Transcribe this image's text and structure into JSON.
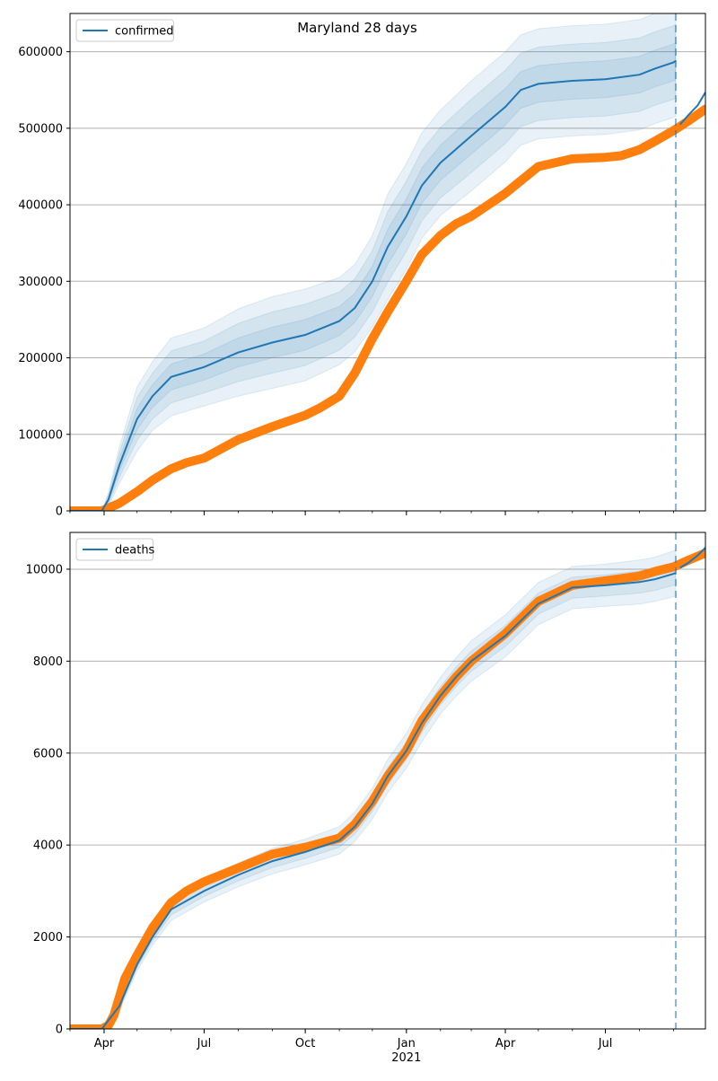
{
  "figure": {
    "title": "Maryland 28 days",
    "colors": {
      "model": "#1f77b4",
      "observed": "#ff7f0e",
      "grid": "#b0b0b0",
      "band": "#1f77b4"
    }
  },
  "chart_data": [
    {
      "type": "line",
      "title": "Maryland 28 days",
      "xlabel": "",
      "ylabel": "",
      "x_axis": "date",
      "xlim": [
        "2020-03-01",
        "2021-09-30"
      ],
      "ylim": [
        0,
        650000
      ],
      "grid": "horizontal",
      "legend": {
        "placement": "top-left",
        "entries": [
          "confirmed"
        ]
      },
      "forecast_start": "2021-09-03",
      "x_ticks": [
        {
          "date": "2020-04-01",
          "label": "Apr"
        },
        {
          "date": "2020-07-01",
          "label": "Jul"
        },
        {
          "date": "2020-10-01",
          "label": "Oct"
        },
        {
          "date": "2021-01-01",
          "label": "Jan"
        },
        {
          "date": "2021-04-01",
          "label": "Apr"
        },
        {
          "date": "2021-07-01",
          "label": "Jul"
        }
      ],
      "y_ticks": [
        0,
        100000,
        200000,
        300000,
        400000,
        500000,
        600000
      ],
      "series": [
        {
          "name": "confirmed",
          "kind": "model-median",
          "x": [
            "2020-03-01",
            "2020-03-30",
            "2020-04-05",
            "2020-04-15",
            "2020-05-01",
            "2020-05-15",
            "2020-06-01",
            "2020-07-01",
            "2020-08-01",
            "2020-09-01",
            "2020-10-01",
            "2020-11-01",
            "2020-11-15",
            "2020-12-01",
            "2020-12-15",
            "2021-01-01",
            "2021-01-15",
            "2021-02-01",
            "2021-03-01",
            "2021-04-01",
            "2021-04-15",
            "2021-05-01",
            "2021-06-01",
            "2021-07-01",
            "2021-08-01",
            "2021-08-15",
            "2021-09-01",
            "2021-09-03"
          ],
          "values": [
            0,
            0,
            15000,
            60000,
            120000,
            150000,
            175000,
            188000,
            207000,
            220000,
            230000,
            248000,
            265000,
            300000,
            345000,
            385000,
            425000,
            455000,
            490000,
            528000,
            550000,
            558000,
            562000,
            564000,
            570000,
            578000,
            586000,
            588000
          ],
          "bands": [
            {
              "lower": [
                0,
                0,
                12000,
                52000,
                106000,
                135000,
                158000,
                171000,
                188000,
                200000,
                210000,
                229000,
                246000,
                280000,
                322000,
                362000,
                402000,
                432000,
                466000,
                504000,
                526000,
                534000,
                538000,
                540000,
                546000,
                554000,
                562000,
                564000
              ],
              "upper": [
                0,
                0,
                18000,
                68000,
                134000,
                165000,
                192000,
                205000,
                226000,
                240000,
                250000,
                267000,
                284000,
                320000,
                368000,
                408000,
                448000,
                478000,
                514000,
                552000,
                574000,
                582000,
                586000,
                588000,
                594000,
                602000,
                610000,
                612000
              ]
            },
            {
              "lower": [
                0,
                0,
                9000,
                44000,
                92000,
                120000,
                141000,
                154000,
                169000,
                180000,
                190000,
                210000,
                227000,
                260000,
                299000,
                339000,
                379000,
                409000,
                442000,
                480000,
                502000,
                510000,
                514000,
                516000,
                522000,
                530000,
                538000,
                540000
              ],
              "upper": [
                0,
                0,
                21000,
                76000,
                148000,
                180000,
                209000,
                222000,
                245000,
                260000,
                270000,
                286000,
                303000,
                340000,
                391000,
                431000,
                471000,
                501000,
                538000,
                576000,
                598000,
                606000,
                610000,
                612000,
                618000,
                626000,
                634000,
                636000
              ]
            },
            {
              "lower": [
                0,
                0,
                6000,
                36000,
                78000,
                105000,
                124000,
                137000,
                150000,
                160000,
                170000,
                191000,
                208000,
                240000,
                276000,
                316000,
                356000,
                386000,
                418000,
                456000,
                478000,
                486000,
                490000,
                492000,
                498000,
                506000,
                514000,
                516000
              ],
              "upper": [
                0,
                0,
                24000,
                84000,
                162000,
                195000,
                226000,
                239000,
                264000,
                280000,
                290000,
                305000,
                322000,
                360000,
                414000,
                454000,
                494000,
                524000,
                562000,
                600000,
                622000,
                630000,
                634000,
                636000,
                642000,
                650000,
                658000,
                660000
              ]
            }
          ]
        },
        {
          "name": "",
          "kind": "model-forecast",
          "x": [
            "2021-09-07",
            "2021-09-15",
            "2021-09-23",
            "2021-09-30"
          ],
          "values": [
            505000,
            518000,
            530000,
            547000
          ]
        },
        {
          "name": "",
          "kind": "observed",
          "x": [
            "2020-03-01",
            "2020-03-30",
            "2020-04-15",
            "2020-05-01",
            "2020-05-15",
            "2020-06-01",
            "2020-06-15",
            "2020-07-01",
            "2020-08-01",
            "2020-09-01",
            "2020-10-01",
            "2020-10-15",
            "2020-11-01",
            "2020-11-15",
            "2020-12-01",
            "2020-12-15",
            "2021-01-01",
            "2021-01-15",
            "2021-02-01",
            "2021-02-15",
            "2021-03-01",
            "2021-04-01",
            "2021-05-01",
            "2021-06-01",
            "2021-07-01",
            "2021-07-15",
            "2021-08-01",
            "2021-08-15",
            "2021-09-01",
            "2021-09-15",
            "2021-09-30"
          ],
          "values": [
            0,
            0,
            10000,
            25000,
            40000,
            55000,
            63000,
            69000,
            93000,
            110000,
            125000,
            135000,
            150000,
            180000,
            225000,
            260000,
            300000,
            335000,
            360000,
            375000,
            385000,
            415000,
            450000,
            460000,
            462000,
            464000,
            472000,
            483000,
            497000,
            510000,
            525000
          ]
        }
      ]
    },
    {
      "type": "line",
      "title": "",
      "xlabel": "",
      "ylabel": "",
      "x_axis": "date",
      "xlim": [
        "2020-03-01",
        "2021-09-30"
      ],
      "ylim": [
        0,
        10800
      ],
      "grid": "horizontal",
      "legend": {
        "placement": "top-left",
        "entries": [
          "deaths"
        ]
      },
      "forecast_start": "2021-09-03",
      "x_ticks": [
        {
          "date": "2020-04-01",
          "label": "Apr"
        },
        {
          "date": "2020-07-01",
          "label": "Jul"
        },
        {
          "date": "2020-10-01",
          "label": "Oct"
        },
        {
          "date": "2021-01-01",
          "label": "Jan"
        },
        {
          "date": "2021-04-01",
          "label": "Apr"
        },
        {
          "date": "2021-07-01",
          "label": "Jul"
        }
      ],
      "x_tick_sublabel": {
        "date": "2021-01-01",
        "label": "2021"
      },
      "y_ticks": [
        0,
        2000,
        4000,
        6000,
        8000,
        10000
      ],
      "series": [
        {
          "name": "deaths",
          "kind": "model-median",
          "x": [
            "2020-03-01",
            "2020-03-30",
            "2020-04-15",
            "2020-05-01",
            "2020-05-15",
            "2020-06-01",
            "2020-07-01",
            "2020-08-01",
            "2020-09-01",
            "2020-10-01",
            "2020-11-01",
            "2020-11-15",
            "2020-12-01",
            "2020-12-15",
            "2021-01-01",
            "2021-01-15",
            "2021-02-01",
            "2021-02-15",
            "2021-03-01",
            "2021-04-01",
            "2021-05-01",
            "2021-06-01",
            "2021-07-01",
            "2021-08-01",
            "2021-08-15",
            "2021-09-01",
            "2021-09-03"
          ],
          "values": [
            0,
            0,
            500,
            1400,
            2000,
            2600,
            3000,
            3350,
            3650,
            3850,
            4100,
            4400,
            4900,
            5500,
            6050,
            6650,
            7250,
            7650,
            8000,
            8550,
            9250,
            9600,
            9650,
            9720,
            9780,
            9900,
            9920
          ],
          "bands": [
            {
              "lower": [
                0,
                0,
                450,
                1330,
                1910,
                2480,
                2880,
                3220,
                3510,
                3710,
                3950,
                4240,
                4730,
                5320,
                5860,
                6450,
                7050,
                7440,
                7780,
                8320,
                9020,
                9370,
                9420,
                9480,
                9540,
                9650,
                9670
              ],
              "upper": [
                0,
                0,
                550,
                1470,
                2090,
                2720,
                3120,
                3480,
                3790,
                3990,
                4250,
                4560,
                5070,
                5680,
                6240,
                6850,
                7450,
                7860,
                8220,
                8780,
                9480,
                9830,
                9880,
                9960,
                10020,
                10150,
                10170
              ]
            },
            {
              "lower": [
                0,
                0,
                400,
                1260,
                1820,
                2360,
                2760,
                3090,
                3370,
                3570,
                3800,
                4080,
                4560,
                5140,
                5670,
                6250,
                6850,
                7230,
                7560,
                8090,
                8790,
                9140,
                9190,
                9240,
                9300,
                9400,
                9420
              ],
              "upper": [
                0,
                0,
                600,
                1540,
                2180,
                2840,
                3240,
                3610,
                3930,
                4130,
                4400,
                4720,
                5240,
                5860,
                6430,
                7050,
                7650,
                8070,
                8440,
                9010,
                9710,
                10060,
                10110,
                10200,
                10260,
                10400,
                10420
              ]
            }
          ]
        },
        {
          "name": "",
          "kind": "model-forecast",
          "x": [
            "2021-09-07",
            "2021-09-15",
            "2021-09-23",
            "2021-09-30"
          ],
          "values": [
            10030,
            10150,
            10300,
            10470
          ]
        },
        {
          "name": "",
          "kind": "observed",
          "x": [
            "2020-03-01",
            "2020-03-30",
            "2020-04-05",
            "2020-04-10",
            "2020-04-15",
            "2020-04-20",
            "2020-05-01",
            "2020-05-15",
            "2020-06-01",
            "2020-06-15",
            "2020-07-01",
            "2020-08-01",
            "2020-09-01",
            "2020-10-01",
            "2020-11-01",
            "2020-11-15",
            "2020-12-01",
            "2020-12-15",
            "2021-01-01",
            "2021-01-15",
            "2021-02-01",
            "2021-02-15",
            "2021-03-01",
            "2021-04-01",
            "2021-05-01",
            "2021-06-01",
            "2021-07-01",
            "2021-08-01",
            "2021-08-15",
            "2021-09-01",
            "2021-09-15",
            "2021-09-30"
          ],
          "values": [
            0,
            0,
            80,
            300,
            700,
            1100,
            1600,
            2200,
            2750,
            3000,
            3200,
            3500,
            3800,
            3950,
            4150,
            4450,
            4950,
            5500,
            6050,
            6700,
            7250,
            7650,
            8000,
            8600,
            9300,
            9650,
            9750,
            9850,
            9950,
            10050,
            10200,
            10350
          ]
        }
      ]
    }
  ]
}
